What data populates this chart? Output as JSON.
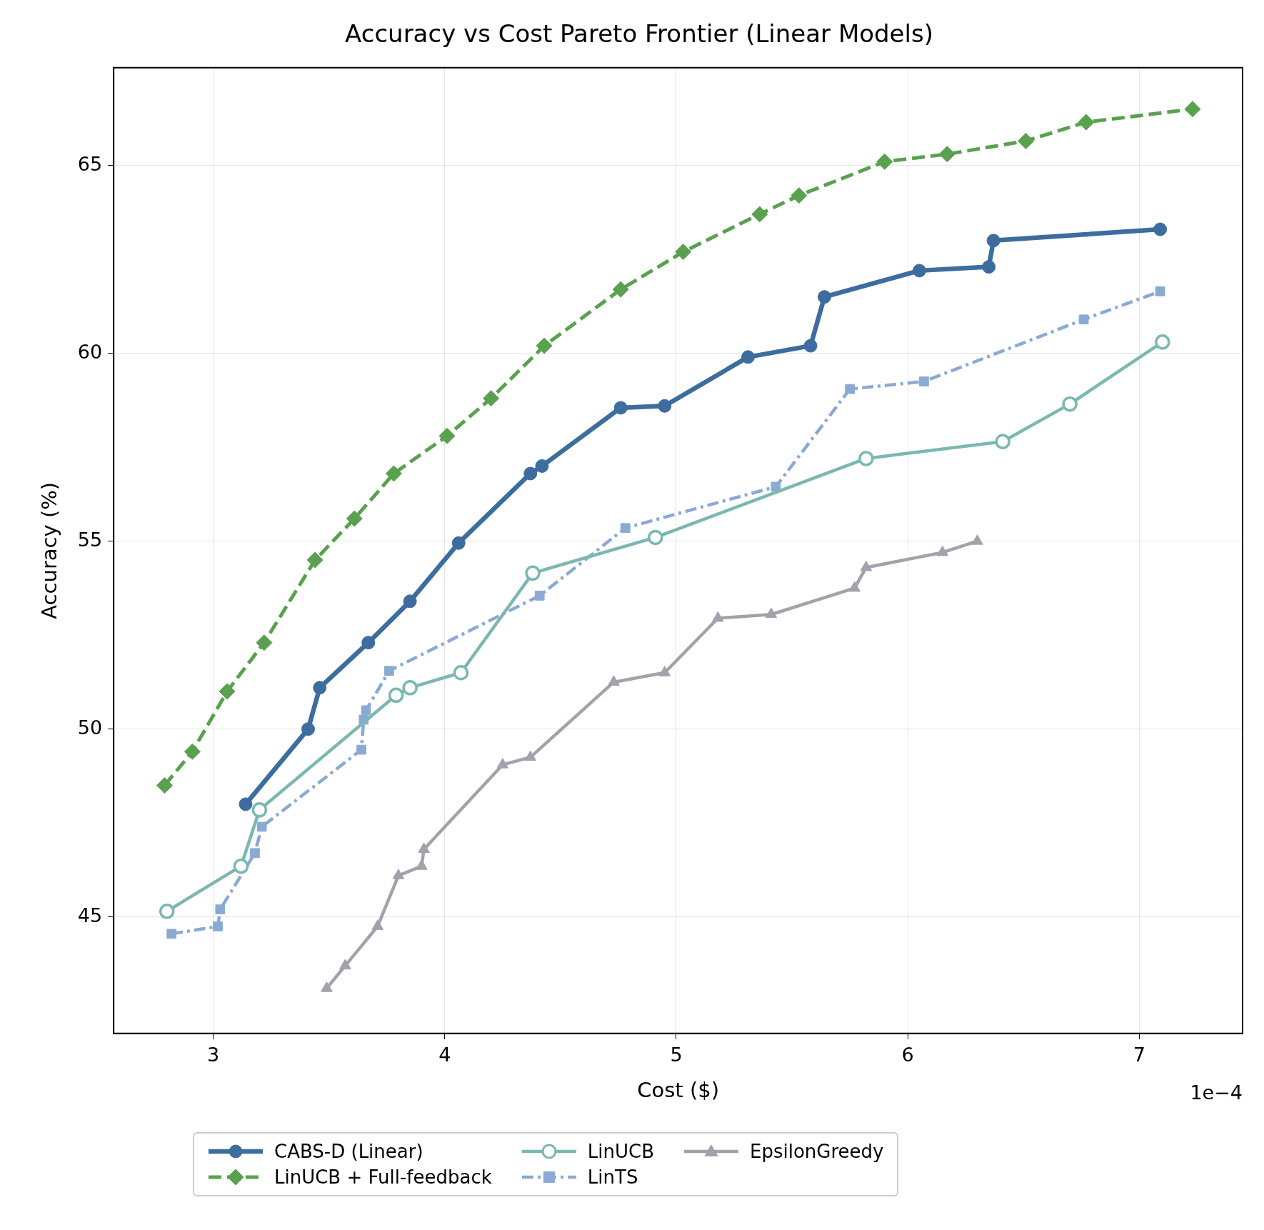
{
  "chart_data": {
    "type": "line",
    "title": "Accuracy vs Cost Pareto Frontier (Linear Models)",
    "xlabel": "Cost ($)",
    "ylabel": "Accuracy (%)",
    "xlim": [
      2.57,
      7.446
    ],
    "ylim": [
      41.9,
      67.6
    ],
    "xticks": [
      3,
      4,
      5,
      6,
      7
    ],
    "yticks": [
      45,
      50,
      55,
      60,
      65
    ],
    "grid": true,
    "legend": "bottom",
    "annotations": [
      "1e−4"
    ],
    "series": [
      {
        "name": "CABS-D (Linear)",
        "color": "#3d6d9e",
        "marker": "circle",
        "line_style": "solid",
        "x": [
          3.14,
          3.41,
          3.46,
          3.67,
          3.85,
          4.06,
          4.37,
          4.42,
          4.76,
          4.95,
          5.31,
          5.58,
          5.64,
          6.05,
          6.35,
          6.37,
          7.09
        ],
        "values": [
          48.0,
          50.0,
          51.1,
          52.3,
          53.4,
          54.95,
          56.8,
          57.0,
          58.55,
          58.6,
          59.9,
          60.2,
          61.5,
          62.2,
          62.3,
          63.0,
          63.3
        ]
      },
      {
        "name": "LinUCB + Full-feedback",
        "color": "#59a14f",
        "marker": "diamond",
        "line_style": "dashed",
        "x": [
          2.79,
          2.91,
          3.06,
          3.22,
          3.44,
          3.61,
          3.78,
          4.01,
          4.2,
          4.43,
          4.76,
          5.03,
          5.36,
          5.53,
          5.9,
          6.17,
          6.51,
          6.77,
          7.23
        ],
        "values": [
          48.5,
          49.4,
          51.0,
          52.3,
          54.5,
          55.6,
          56.8,
          57.8,
          58.8,
          60.2,
          61.7,
          62.7,
          63.7,
          64.2,
          65.1,
          65.3,
          65.65,
          66.15,
          66.5
        ]
      },
      {
        "name": "LinUCB",
        "color": "#7ab8b0",
        "marker": "circle",
        "line_style": "solid",
        "x": [
          2.8,
          3.12,
          3.2,
          3.79,
          3.85,
          4.07,
          4.38,
          4.91,
          5.82,
          6.41,
          6.7,
          7.1
        ],
        "values": [
          45.15,
          46.35,
          47.85,
          50.9,
          51.1,
          51.5,
          54.15,
          55.1,
          57.2,
          57.65,
          58.65,
          60.3
        ]
      },
      {
        "name": "LinTS",
        "color": "#8aaad4",
        "marker": "square",
        "line_style": "dashdot",
        "x": [
          2.82,
          3.02,
          3.03,
          3.18,
          3.21,
          3.64,
          3.65,
          3.66,
          3.76,
          4.41,
          4.78,
          5.43,
          5.75,
          6.07,
          6.76,
          7.09
        ],
        "values": [
          44.55,
          44.75,
          45.2,
          46.7,
          47.4,
          49.45,
          50.25,
          50.5,
          51.55,
          53.55,
          55.35,
          56.45,
          59.05,
          59.25,
          60.9,
          61.65
        ]
      },
      {
        "name": "EpsilonGreedy",
        "color": "#a0a3ab",
        "marker": "triangle",
        "line_style": "solid",
        "x": [
          3.49,
          3.57,
          3.71,
          3.8,
          3.9,
          3.91,
          4.25,
          4.37,
          4.73,
          4.95,
          5.18,
          5.41,
          5.77,
          5.82,
          6.15,
          6.3
        ],
        "values": [
          43.1,
          43.7,
          44.75,
          46.1,
          46.35,
          46.8,
          49.05,
          49.25,
          51.25,
          51.5,
          52.95,
          53.05,
          53.75,
          54.3,
          54.7,
          55.0
        ]
      }
    ]
  }
}
